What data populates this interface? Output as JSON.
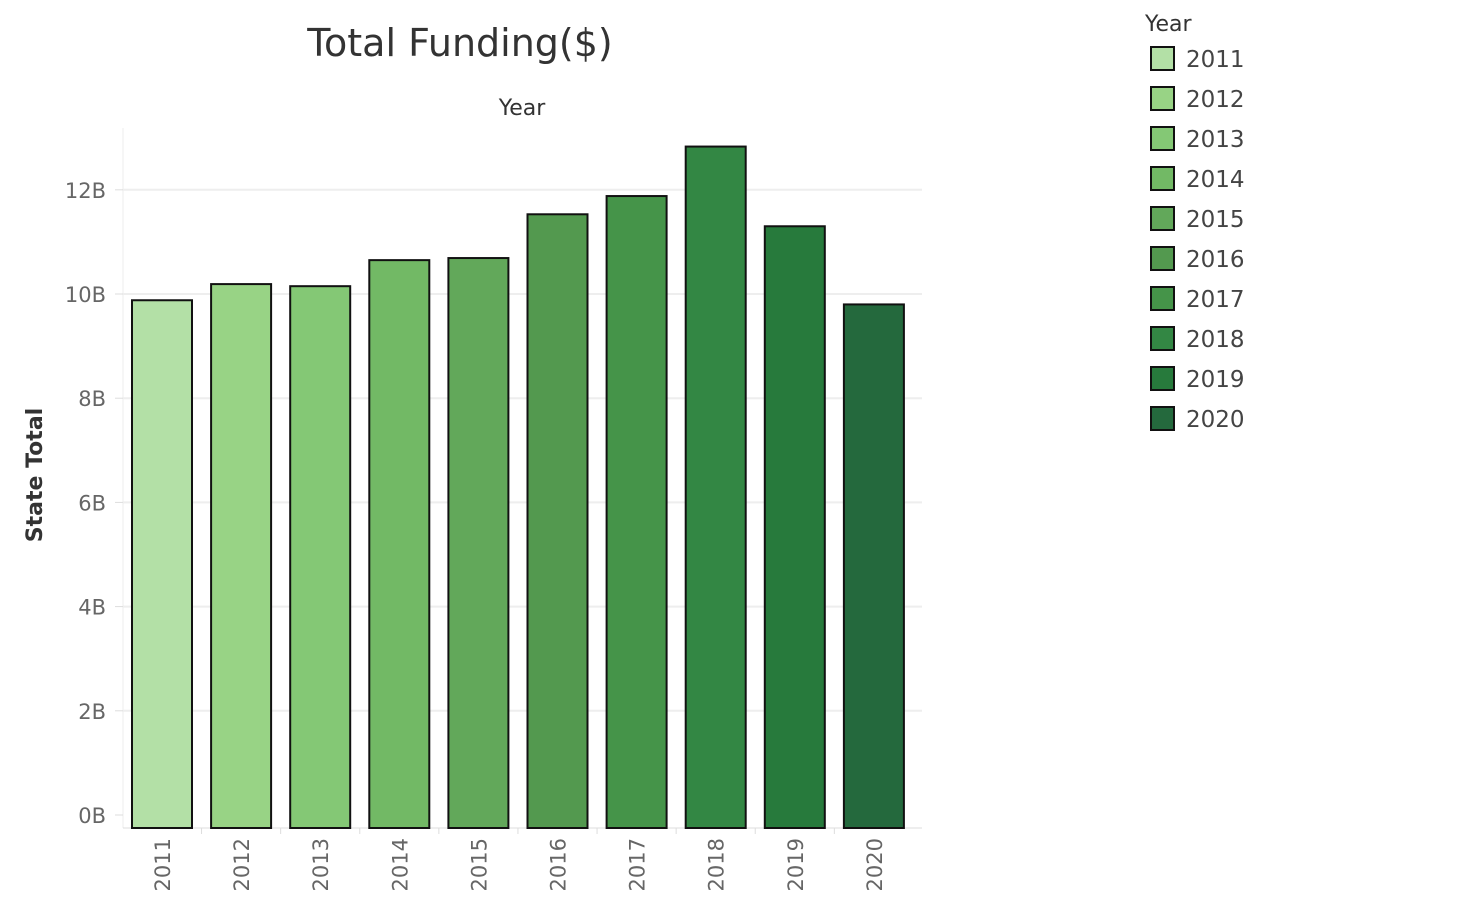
{
  "chart_data": {
    "type": "bar",
    "title": "Total Funding($)",
    "column_header": "Year",
    "xlabel": "",
    "ylabel": "State Total",
    "categories": [
      "2011",
      "2012",
      "2013",
      "2014",
      "2015",
      "2016",
      "2017",
      "2018",
      "2019",
      "2020"
    ],
    "values": [
      9.88,
      10.19,
      10.15,
      10.65,
      10.69,
      11.53,
      11.88,
      12.83,
      11.3,
      9.8
    ],
    "value_unit": "B",
    "ylim": [
      0,
      13.8
    ],
    "yticks": [
      0,
      2,
      4,
      6,
      8,
      10,
      12
    ],
    "ytick_labels": [
      "0B",
      "2B",
      "4B",
      "6B",
      "8B",
      "10B",
      "12B"
    ],
    "grid": true,
    "legend": {
      "title": "Year",
      "placement": "right",
      "entries": [
        "2011",
        "2012",
        "2013",
        "2014",
        "2015",
        "2016",
        "2017",
        "2018",
        "2019",
        "2020"
      ]
    },
    "colors": [
      "#b3e0a6",
      "#98d385",
      "#84c875",
      "#72b965",
      "#62a85a",
      "#53994f",
      "#459449",
      "#338744",
      "#277a3c",
      "#24693d"
    ]
  }
}
